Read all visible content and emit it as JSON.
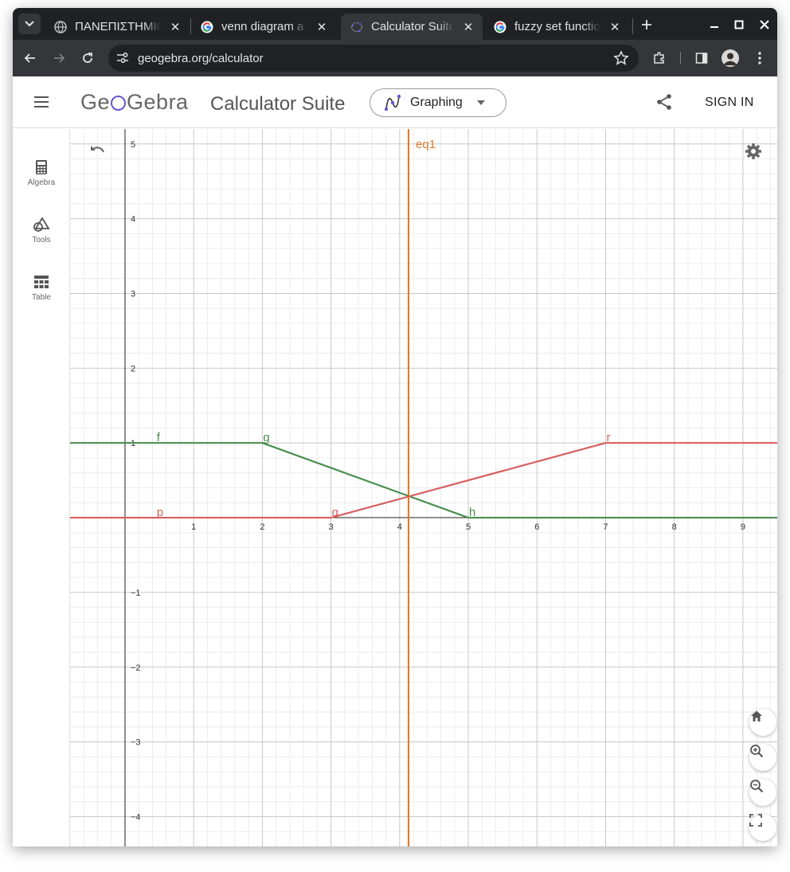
{
  "browser": {
    "tabs": [
      {
        "title": "ΠΑΝΕΠΙΣΤΗΜΙΟ",
        "icon": "globe-icon",
        "active": false
      },
      {
        "title": "venn diagram a a",
        "icon": "google-icon",
        "active": false
      },
      {
        "title": "Calculator Suite",
        "icon": "geogebra-icon",
        "active": true
      },
      {
        "title": "fuzzy set functio",
        "icon": "google-icon",
        "active": false
      }
    ],
    "url": "geogebra.org/calculator"
  },
  "header": {
    "logo_left": "Ge",
    "logo_right": "Gebra",
    "suite_title": "Calculator Suite",
    "app_selector": "Graphing",
    "sign_in": "SIGN IN"
  },
  "sidebar": {
    "items": [
      {
        "label": "Algebra",
        "icon": "calculator-icon"
      },
      {
        "label": "Tools",
        "icon": "shapes-icon"
      },
      {
        "label": "Table",
        "icon": "table-icon"
      }
    ]
  },
  "chart_data": {
    "type": "line",
    "x_range": [
      -0.8,
      9.5
    ],
    "y_range": [
      -4.4,
      5.2
    ],
    "x_ticks": [
      "1",
      "2",
      "3",
      "4",
      "5",
      "6",
      "7",
      "8",
      "9"
    ],
    "y_ticks": [
      "−4",
      "−3",
      "−2",
      "−1",
      "1",
      "2",
      "3",
      "4",
      "5"
    ],
    "grid": true,
    "colors": {
      "green": "#4a8e4f",
      "red": "#d75f5f",
      "orange": "#e07b2e"
    },
    "segments": [
      {
        "name": "f",
        "color": "green",
        "points": [
          [
            -0.8,
            1
          ],
          [
            2,
            1
          ]
        ]
      },
      {
        "name": "g",
        "color": "green",
        "points": [
          [
            2,
            1
          ],
          [
            5,
            0
          ]
        ]
      },
      {
        "name": "h",
        "color": "green",
        "points": [
          [
            5,
            0
          ],
          [
            9.5,
            0
          ]
        ]
      },
      {
        "name": "p",
        "color": "red",
        "points": [
          [
            -0.8,
            0
          ],
          [
            3,
            0
          ]
        ]
      },
      {
        "name": "q",
        "color": "red",
        "points": [
          [
            3,
            0
          ],
          [
            7,
            1
          ]
        ]
      },
      {
        "name": "r",
        "color": "red",
        "points": [
          [
            7,
            1
          ],
          [
            9.5,
            1
          ]
        ]
      }
    ],
    "vertical_lines": [
      {
        "name": "eq1",
        "color": "orange",
        "x": 4.13
      }
    ],
    "label_positions": [
      {
        "name": "f",
        "x": 0.45,
        "y": 1
      },
      {
        "name": "g",
        "x": 2.0,
        "y": 1
      },
      {
        "name": "h",
        "x": 5.0,
        "y": 0
      },
      {
        "name": "p",
        "x": 0.45,
        "y": 0
      },
      {
        "name": "q",
        "x": 3.0,
        "y": 0
      },
      {
        "name": "r",
        "x": 7.0,
        "y": 1
      },
      {
        "name": "eq1",
        "x": 4.13,
        "y": 5
      }
    ]
  }
}
